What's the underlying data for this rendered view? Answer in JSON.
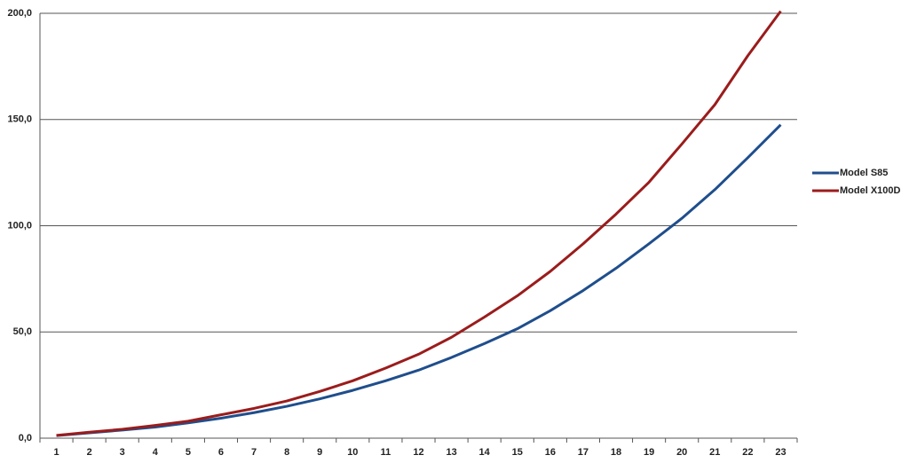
{
  "chart_data": {
    "type": "line",
    "categories": [
      "1",
      "2",
      "3",
      "4",
      "5",
      "6",
      "7",
      "8",
      "9",
      "10",
      "11",
      "12",
      "13",
      "14",
      "15",
      "16",
      "17",
      "18",
      "19",
      "20",
      "21",
      "22",
      "23"
    ],
    "series": [
      {
        "name": "Model S85",
        "color": "#1f4e8c",
        "values": [
          1.2,
          2.5,
          3.8,
          5.2,
          7.2,
          9.4,
          12,
          15,
          18.5,
          22.5,
          27,
          32,
          38,
          44.5,
          51.5,
          60,
          69.5,
          80,
          91.5,
          103.5,
          117,
          132,
          147.5
        ]
      },
      {
        "name": "Model X100D",
        "color": "#9b1c1c",
        "values": [
          1.3,
          2.8,
          4.2,
          6,
          8,
          11,
          14,
          17.5,
          22,
          27,
          33,
          39.5,
          47.5,
          57,
          67,
          78.5,
          91.5,
          105.5,
          120.5,
          138.5,
          157,
          180,
          201
        ]
      }
    ],
    "ylim": [
      0,
      200
    ],
    "yticks": [
      {
        "value": 0,
        "label": "0,0"
      },
      {
        "value": 50,
        "label": "50,0"
      },
      {
        "value": 100,
        "label": "100,0"
      },
      {
        "value": 150,
        "label": "150,0"
      },
      {
        "value": 200,
        "label": "200,0"
      }
    ],
    "grid": true,
    "legend": "right"
  }
}
